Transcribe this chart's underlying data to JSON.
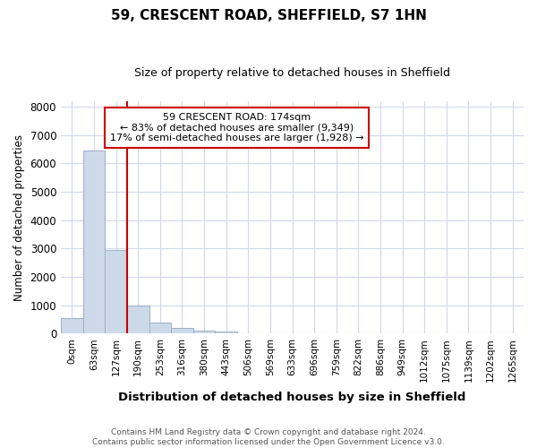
{
  "title": "59, CRESCENT ROAD, SHEFFIELD, S7 1HN",
  "subtitle": "Size of property relative to detached houses in Sheffield",
  "xlabel": "Distribution of detached houses by size in Sheffield",
  "ylabel": "Number of detached properties",
  "annotation_line1": "59 CRESCENT ROAD: 174sqm",
  "annotation_line2": "← 83% of detached houses are smaller (9,349)",
  "annotation_line3": "17% of semi-detached houses are larger (1,928) →",
  "bin_labels": [
    "0sqm",
    "63sqm",
    "127sqm",
    "190sqm",
    "253sqm",
    "316sqm",
    "380sqm",
    "443sqm",
    "506sqm",
    "569sqm",
    "633sqm",
    "696sqm",
    "759sqm",
    "822sqm",
    "886sqm",
    "949sqm",
    "1012sqm",
    "1075sqm",
    "1139sqm",
    "1202sqm",
    "1265sqm"
  ],
  "bar_heights": [
    560,
    6450,
    2950,
    980,
    400,
    190,
    100,
    80,
    0,
    0,
    0,
    0,
    0,
    0,
    0,
    0,
    0,
    0,
    0,
    0,
    0
  ],
  "bar_color": "#ccd9e8",
  "bar_edge_color": "#9ab0c8",
  "vline_x": 3,
  "vline_color": "#cc0000",
  "annotation_box_color": "#cc0000",
  "ylim": [
    0,
    8200
  ],
  "yticks": [
    0,
    1000,
    2000,
    3000,
    4000,
    5000,
    6000,
    7000,
    8000
  ],
  "grid_color": "#d0d8e8",
  "bg_color": "#ffffff",
  "plot_bg_color": "#ffffff",
  "footer": "Contains HM Land Registry data © Crown copyright and database right 2024.\nContains public sector information licensed under the Open Government Licence v3.0."
}
